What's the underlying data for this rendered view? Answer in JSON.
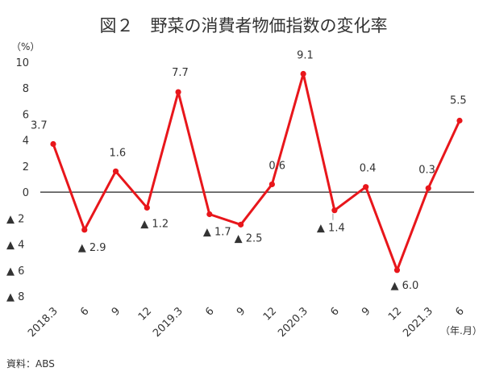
{
  "chart_data": {
    "type": "line",
    "title": "図２　野菜の消費者物価指数の変化率",
    "y_unit_label": "（%）",
    "x_unit_label": "（年.月）",
    "source": "資料：ABS",
    "ylim": [
      -8,
      10
    ],
    "y_ticks": [
      {
        "value": 10,
        "label": "10"
      },
      {
        "value": 8,
        "label": "8"
      },
      {
        "value": 6,
        "label": "6"
      },
      {
        "value": 4,
        "label": "4"
      },
      {
        "value": 2,
        "label": "2"
      },
      {
        "value": 0,
        "label": "0"
      },
      {
        "value": -2,
        "label": "▲ 2"
      },
      {
        "value": -4,
        "label": "▲ 4"
      },
      {
        "value": -6,
        "label": "▲ 6"
      },
      {
        "value": -8,
        "label": "▲ 8"
      }
    ],
    "categories": [
      "2018.3",
      "6",
      "9",
      "12",
      "2019.3",
      "6",
      "9",
      "12",
      "2020.3",
      "6",
      "9",
      "12",
      "2021.3",
      "6"
    ],
    "values": [
      3.7,
      -2.9,
      1.6,
      -1.2,
      7.7,
      -1.7,
      -2.5,
      0.6,
      9.1,
      -1.4,
      0.4,
      -6.0,
      0.3,
      5.5
    ],
    "data_labels": [
      "3.7",
      "▲ 2.9",
      "1.6",
      "▲ 1.2",
      "7.7",
      "▲ 1.7",
      "▲ 2.5",
      "0.6",
      "9.1",
      "▲ 1.4",
      "0.4",
      "▲ 6.0",
      "0.3",
      "5.5"
    ],
    "grid": false,
    "line_color": "#e8161b"
  }
}
